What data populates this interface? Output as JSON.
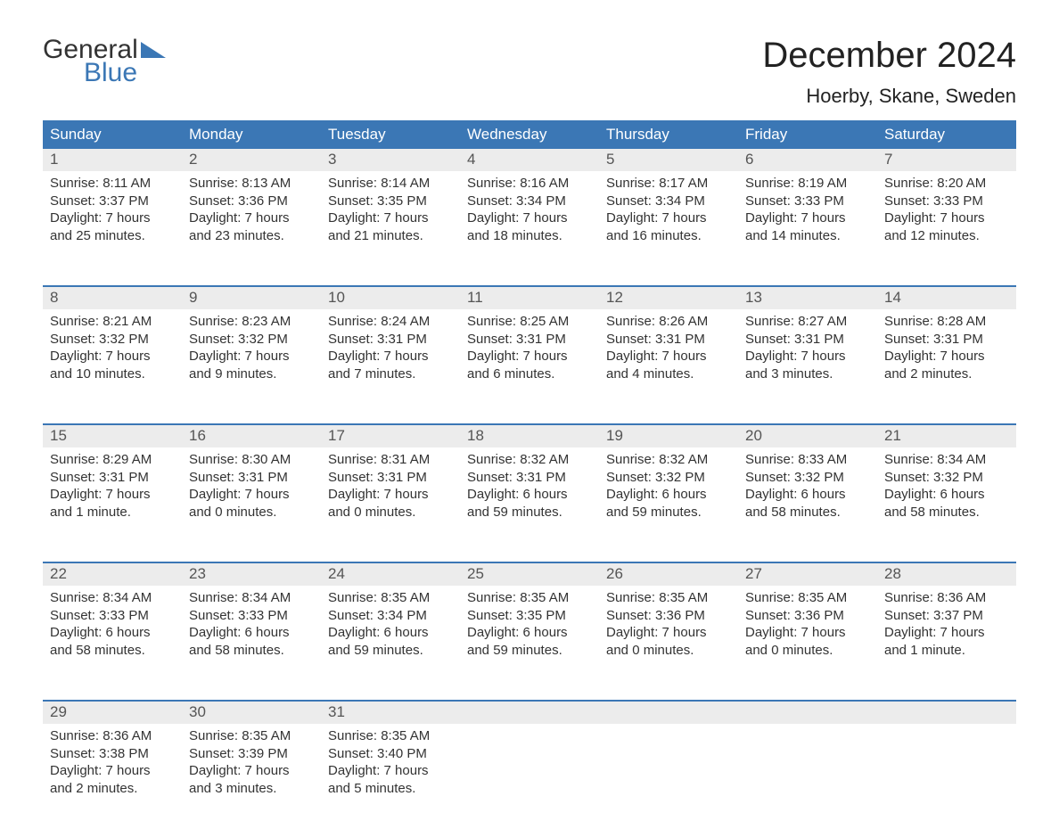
{
  "logo": {
    "line1": "General",
    "line2": "Blue"
  },
  "header": {
    "month_title": "December 2024",
    "location": "Hoerby, Skane, Sweden"
  },
  "colors": {
    "accent": "#3b77b5",
    "header_bg": "#3b77b5",
    "header_text": "#ffffff",
    "daynum_bg": "#ececec",
    "body_text": "#333333",
    "background": "#ffffff"
  },
  "calendar": {
    "day_headers": [
      "Sunday",
      "Monday",
      "Tuesday",
      "Wednesday",
      "Thursday",
      "Friday",
      "Saturday"
    ],
    "weeks": [
      [
        {
          "n": "1",
          "sr": "8:11 AM",
          "ss": "3:37 PM",
          "dl": "7 hours and 25 minutes."
        },
        {
          "n": "2",
          "sr": "8:13 AM",
          "ss": "3:36 PM",
          "dl": "7 hours and 23 minutes."
        },
        {
          "n": "3",
          "sr": "8:14 AM",
          "ss": "3:35 PM",
          "dl": "7 hours and 21 minutes."
        },
        {
          "n": "4",
          "sr": "8:16 AM",
          "ss": "3:34 PM",
          "dl": "7 hours and 18 minutes."
        },
        {
          "n": "5",
          "sr": "8:17 AM",
          "ss": "3:34 PM",
          "dl": "7 hours and 16 minutes."
        },
        {
          "n": "6",
          "sr": "8:19 AM",
          "ss": "3:33 PM",
          "dl": "7 hours and 14 minutes."
        },
        {
          "n": "7",
          "sr": "8:20 AM",
          "ss": "3:33 PM",
          "dl": "7 hours and 12 minutes."
        }
      ],
      [
        {
          "n": "8",
          "sr": "8:21 AM",
          "ss": "3:32 PM",
          "dl": "7 hours and 10 minutes."
        },
        {
          "n": "9",
          "sr": "8:23 AM",
          "ss": "3:32 PM",
          "dl": "7 hours and 9 minutes."
        },
        {
          "n": "10",
          "sr": "8:24 AM",
          "ss": "3:31 PM",
          "dl": "7 hours and 7 minutes."
        },
        {
          "n": "11",
          "sr": "8:25 AM",
          "ss": "3:31 PM",
          "dl": "7 hours and 6 minutes."
        },
        {
          "n": "12",
          "sr": "8:26 AM",
          "ss": "3:31 PM",
          "dl": "7 hours and 4 minutes."
        },
        {
          "n": "13",
          "sr": "8:27 AM",
          "ss": "3:31 PM",
          "dl": "7 hours and 3 minutes."
        },
        {
          "n": "14",
          "sr": "8:28 AM",
          "ss": "3:31 PM",
          "dl": "7 hours and 2 minutes."
        }
      ],
      [
        {
          "n": "15",
          "sr": "8:29 AM",
          "ss": "3:31 PM",
          "dl": "7 hours and 1 minute."
        },
        {
          "n": "16",
          "sr": "8:30 AM",
          "ss": "3:31 PM",
          "dl": "7 hours and 0 minutes."
        },
        {
          "n": "17",
          "sr": "8:31 AM",
          "ss": "3:31 PM",
          "dl": "7 hours and 0 minutes."
        },
        {
          "n": "18",
          "sr": "8:32 AM",
          "ss": "3:31 PM",
          "dl": "6 hours and 59 minutes."
        },
        {
          "n": "19",
          "sr": "8:32 AM",
          "ss": "3:32 PM",
          "dl": "6 hours and 59 minutes."
        },
        {
          "n": "20",
          "sr": "8:33 AM",
          "ss": "3:32 PM",
          "dl": "6 hours and 58 minutes."
        },
        {
          "n": "21",
          "sr": "8:34 AM",
          "ss": "3:32 PM",
          "dl": "6 hours and 58 minutes."
        }
      ],
      [
        {
          "n": "22",
          "sr": "8:34 AM",
          "ss": "3:33 PM",
          "dl": "6 hours and 58 minutes."
        },
        {
          "n": "23",
          "sr": "8:34 AM",
          "ss": "3:33 PM",
          "dl": "6 hours and 58 minutes."
        },
        {
          "n": "24",
          "sr": "8:35 AM",
          "ss": "3:34 PM",
          "dl": "6 hours and 59 minutes."
        },
        {
          "n": "25",
          "sr": "8:35 AM",
          "ss": "3:35 PM",
          "dl": "6 hours and 59 minutes."
        },
        {
          "n": "26",
          "sr": "8:35 AM",
          "ss": "3:36 PM",
          "dl": "7 hours and 0 minutes."
        },
        {
          "n": "27",
          "sr": "8:35 AM",
          "ss": "3:36 PM",
          "dl": "7 hours and 0 minutes."
        },
        {
          "n": "28",
          "sr": "8:36 AM",
          "ss": "3:37 PM",
          "dl": "7 hours and 1 minute."
        }
      ],
      [
        {
          "n": "29",
          "sr": "8:36 AM",
          "ss": "3:38 PM",
          "dl": "7 hours and 2 minutes."
        },
        {
          "n": "30",
          "sr": "8:35 AM",
          "ss": "3:39 PM",
          "dl": "7 hours and 3 minutes."
        },
        {
          "n": "31",
          "sr": "8:35 AM",
          "ss": "3:40 PM",
          "dl": "7 hours and 5 minutes."
        },
        null,
        null,
        null,
        null
      ]
    ],
    "labels": {
      "sunrise_prefix": "Sunrise: ",
      "sunset_prefix": "Sunset: ",
      "daylight_prefix": "Daylight: "
    }
  }
}
